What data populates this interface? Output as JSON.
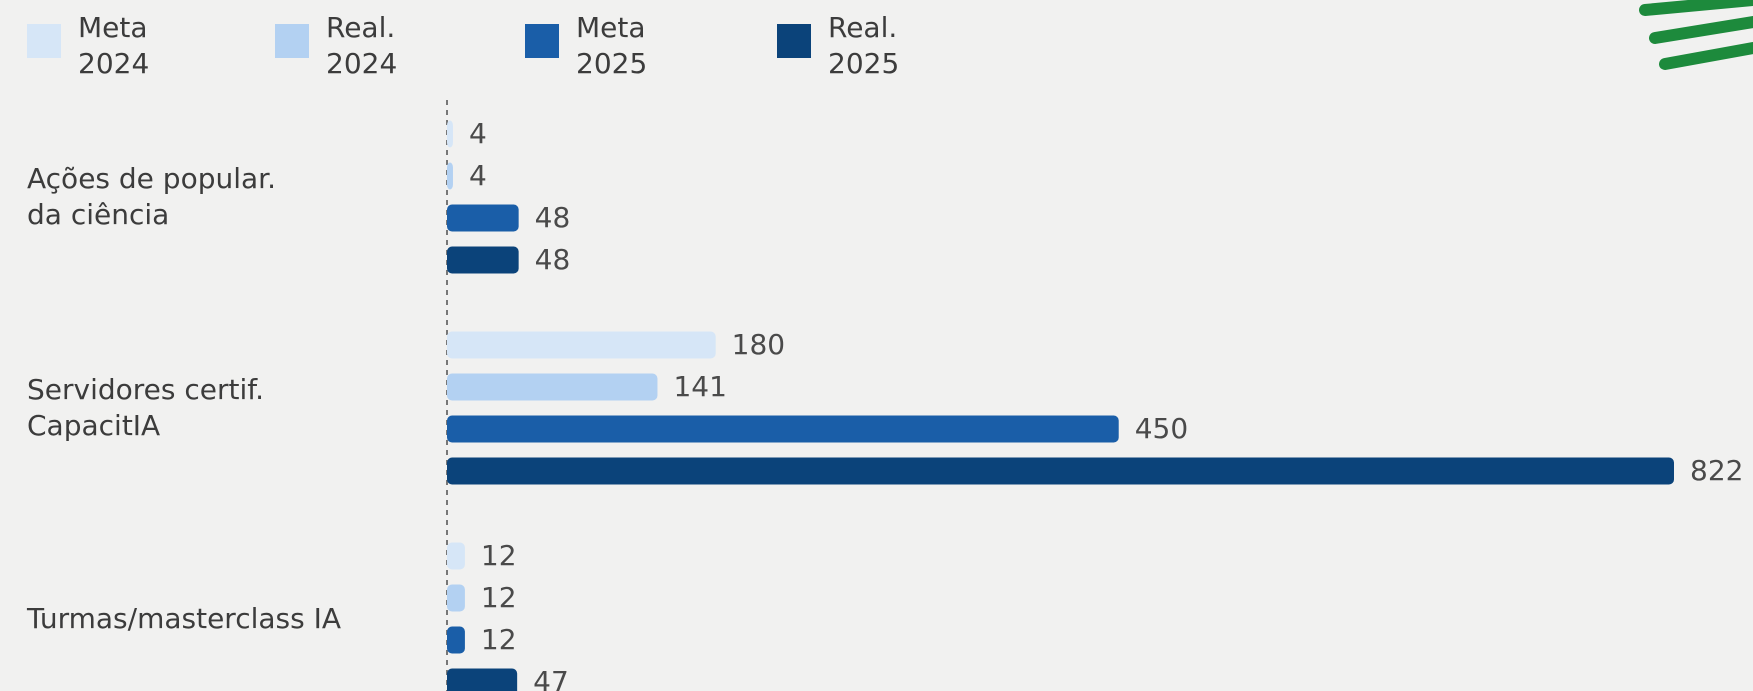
{
  "chart_data": {
    "type": "hbar",
    "categories": [
      "Ações de popular.\nda ciência",
      "Servidores certif.\nCapacitIA",
      "Turmas/masterclass IA"
    ],
    "series": [
      {
        "name": "Meta\n2024",
        "color": "#d6e6f7",
        "values": [
          4,
          180,
          12
        ]
      },
      {
        "name": "Real.\n2024",
        "color": "#b3d1f2",
        "values": [
          4,
          141,
          12
        ]
      },
      {
        "name": "Meta\n2025",
        "color": "#1a5ea8",
        "values": [
          48,
          450,
          12
        ]
      },
      {
        "name": "Real.\n2025",
        "color": "#0b437a",
        "values": [
          48,
          822,
          47
        ]
      }
    ],
    "xlim": [
      0,
      822
    ]
  }
}
